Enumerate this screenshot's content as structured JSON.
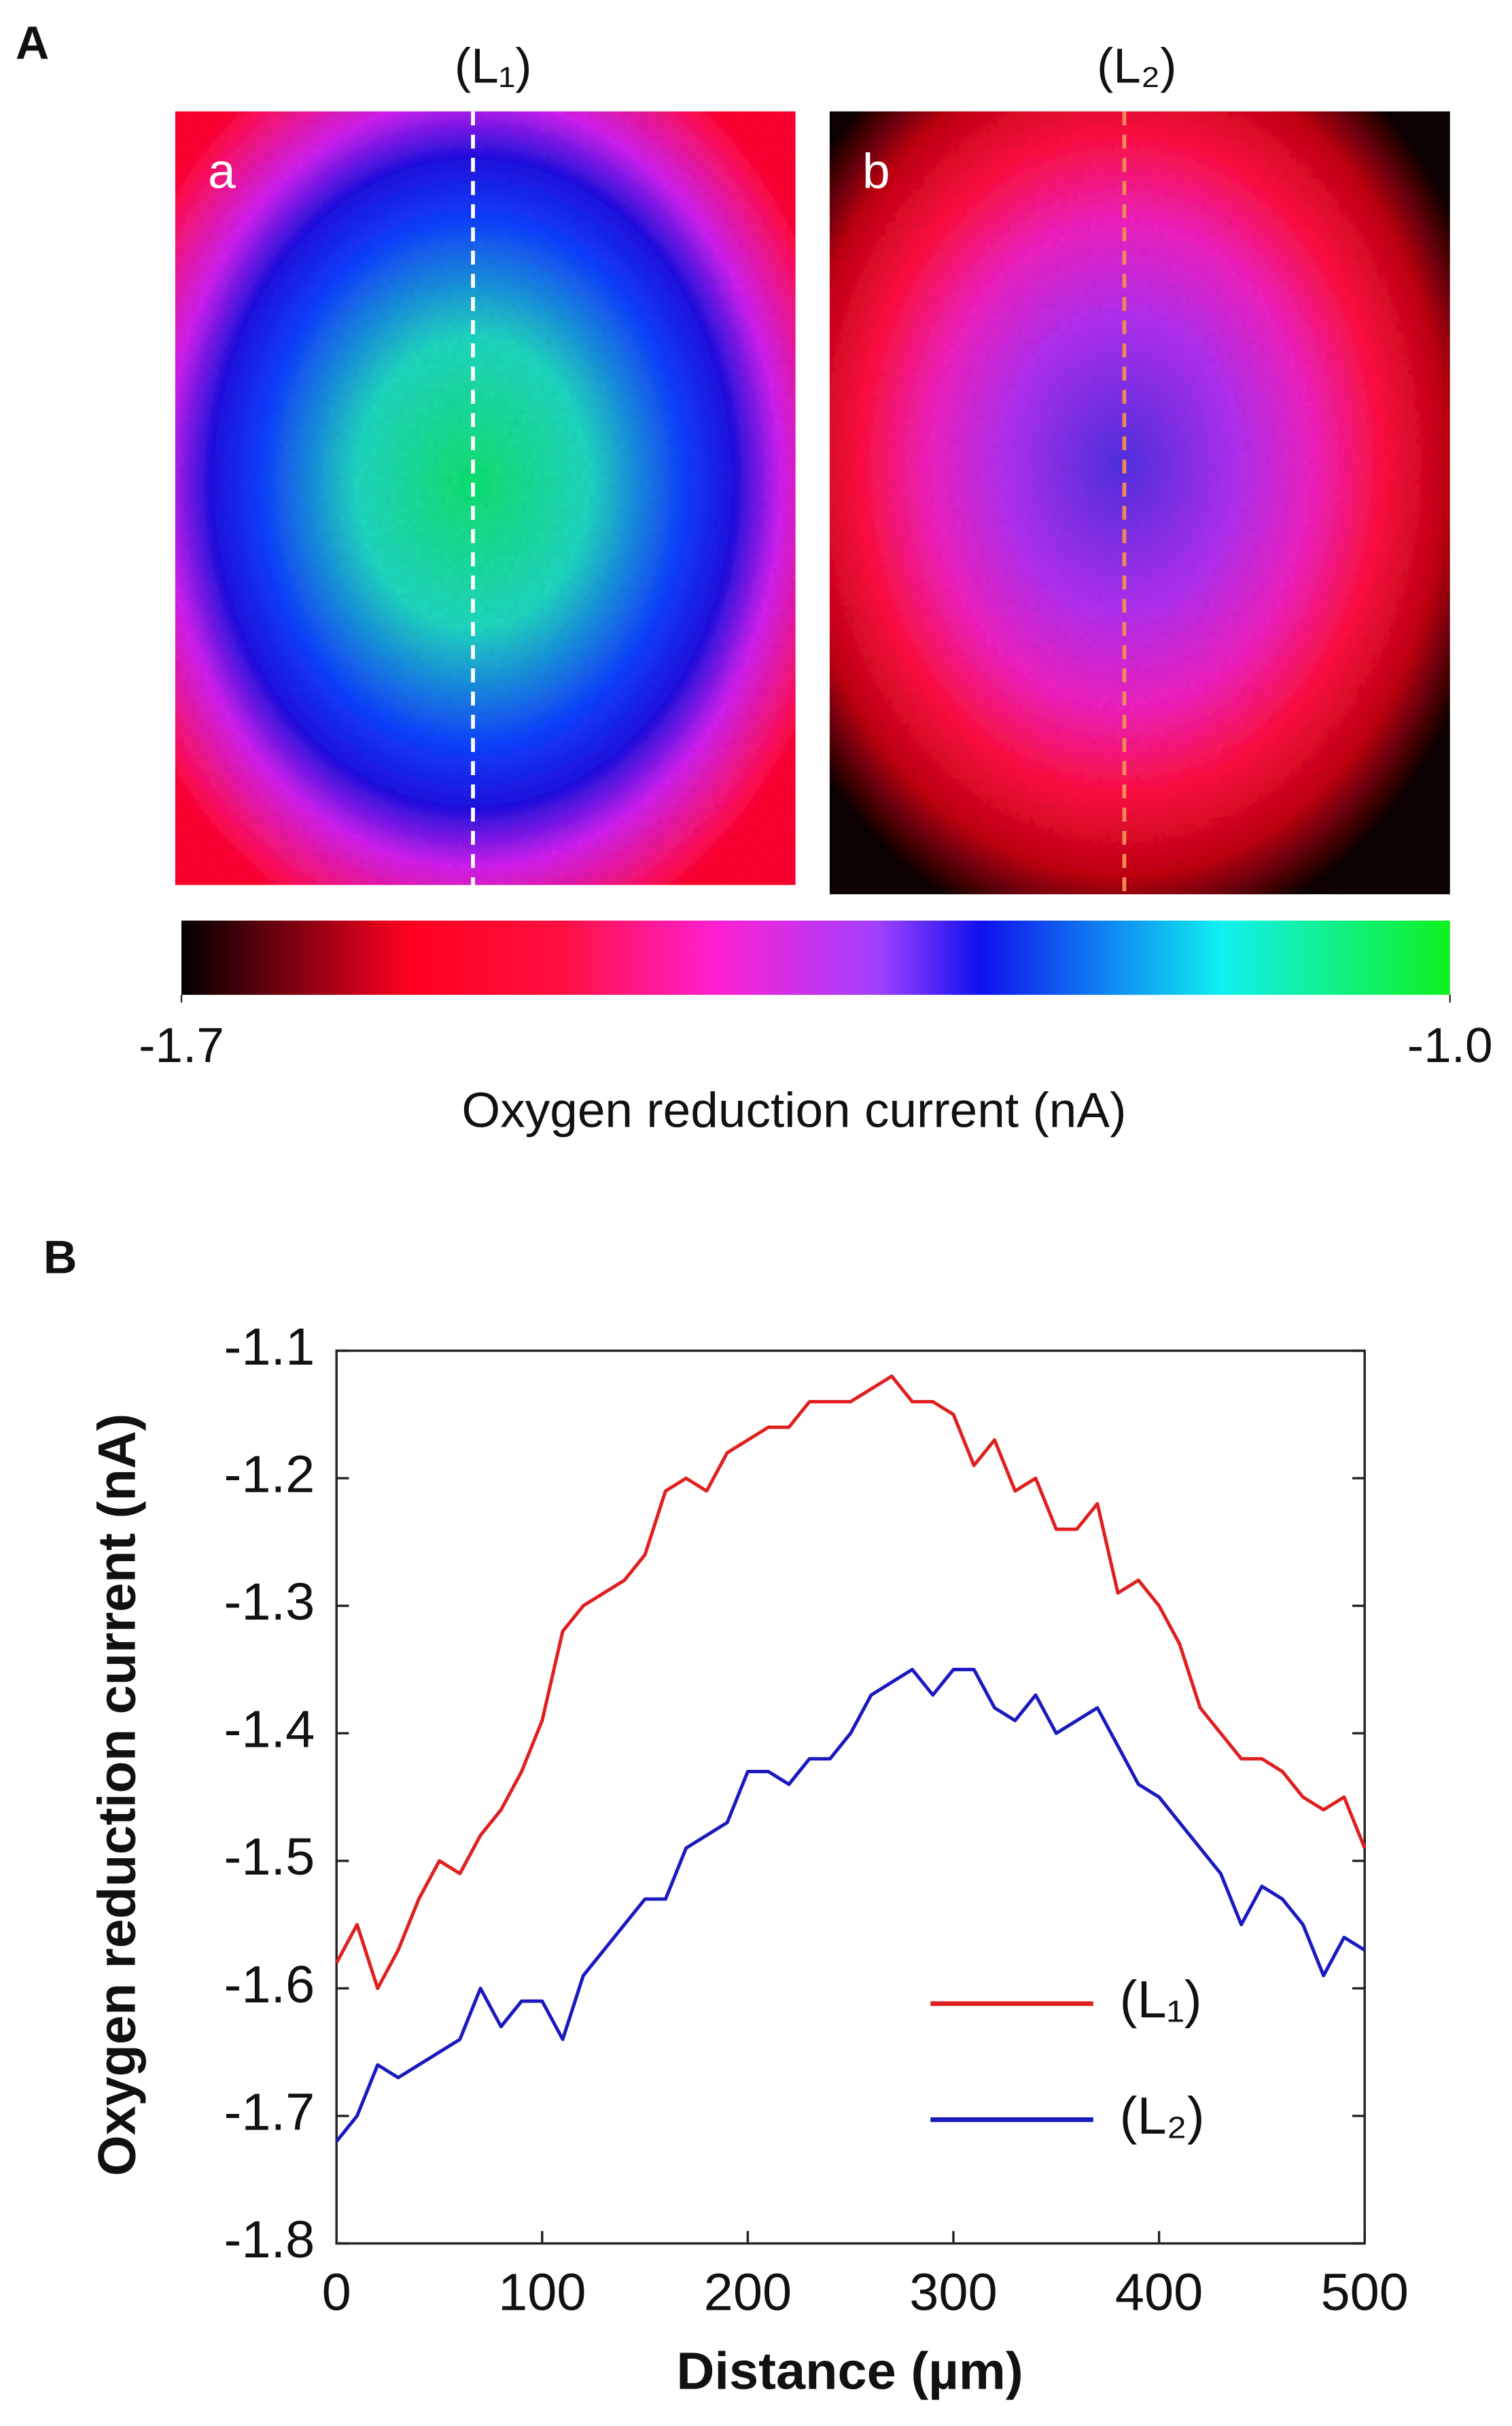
{
  "chart_data": [
    {
      "type": "heatmap",
      "panel_label": "A",
      "images": [
        {
          "label": "a",
          "line_label": "(L₁)"
        },
        {
          "label": "b",
          "line_label": "(L₂)"
        }
      ],
      "colorbar_lim": [
        -1.7,
        -1.0
      ],
      "colorbar_ticks": [
        -1.7,
        {
          "value": -1.0,
          "label": "-1.0"
        }
      ],
      "colorbar_label": "Oxygen reduction current (nA)"
    },
    {
      "type": "line",
      "panel_label": "B",
      "xlabel": "Distance (µm)",
      "ylabel": "Oxygen reduction current (nA)",
      "x": [
        0,
        10,
        20,
        30,
        40,
        50,
        60,
        70,
        80,
        90,
        100,
        110,
        120,
        130,
        140,
        150,
        160,
        170,
        180,
        190,
        200,
        210,
        220,
        230,
        240,
        250,
        260,
        270,
        280,
        290,
        300,
        310,
        320,
        330,
        340,
        350,
        360,
        370,
        380,
        390,
        400,
        410,
        420,
        430,
        440,
        450,
        460,
        470,
        480,
        490,
        500
      ],
      "series": [
        {
          "name": "(L₁)",
          "color": "#e02020",
          "values": [
            -1.58,
            -1.55,
            -1.6,
            -1.57,
            -1.53,
            -1.5,
            -1.51,
            -1.48,
            -1.46,
            -1.43,
            -1.39,
            -1.32,
            -1.3,
            -1.29,
            -1.28,
            -1.26,
            -1.21,
            -1.2,
            -1.21,
            -1.18,
            -1.17,
            -1.16,
            -1.16,
            -1.14,
            -1.14,
            -1.14,
            -1.13,
            -1.12,
            -1.14,
            -1.14,
            -1.15,
            -1.19,
            -1.17,
            -1.21,
            -1.2,
            -1.24,
            -1.24,
            -1.22,
            -1.29,
            -1.28,
            -1.3,
            -1.33,
            -1.38,
            -1.4,
            -1.42,
            -1.42,
            -1.43,
            -1.45,
            -1.46,
            -1.45,
            -1.49
          ]
        },
        {
          "name": "(L₂)",
          "color": "#1a1abf",
          "values": [
            -1.72,
            -1.7,
            -1.66,
            -1.67,
            -1.66,
            -1.65,
            -1.64,
            -1.6,
            -1.63,
            -1.61,
            -1.61,
            -1.64,
            -1.59,
            -1.57,
            -1.55,
            -1.53,
            -1.53,
            -1.49,
            -1.48,
            -1.47,
            -1.43,
            -1.43,
            -1.44,
            -1.42,
            -1.42,
            -1.4,
            -1.37,
            -1.36,
            -1.35,
            -1.37,
            -1.35,
            -1.35,
            -1.38,
            -1.39,
            -1.37,
            -1.4,
            -1.39,
            -1.38,
            -1.41,
            -1.44,
            -1.45,
            -1.47,
            -1.49,
            -1.51,
            -1.55,
            -1.52,
            -1.53,
            -1.55,
            -1.59,
            -1.56,
            -1.57
          ]
        }
      ],
      "xlim": [
        0,
        500
      ],
      "xticks": [
        0,
        100,
        200,
        300,
        400,
        500
      ],
      "ylim": [
        -1.8,
        -1.1
      ],
      "yticks": [
        -1.8,
        -1.7,
        -1.6,
        -1.5,
        -1.4,
        -1.3,
        -1.2,
        -1.1
      ],
      "legend": "lower right"
    }
  ]
}
